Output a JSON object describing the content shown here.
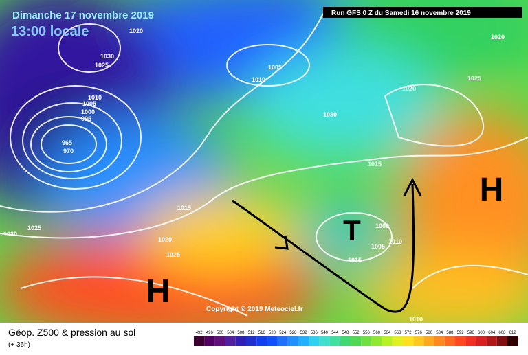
{
  "header": {
    "date": "Dimanche 17 novembre 2019",
    "time": "13:00 locale",
    "run": "Run GFS 0 Z du Samedi 16 novembre 2019"
  },
  "copyright": "Copyright © 2019 Meteociel.fr",
  "footer": {
    "title": "Géop. Z500 & pression au sol",
    "lead": "(+ 36h)"
  },
  "centers": [
    "H",
    "H",
    "T"
  ],
  "isobars": [
    "1020",
    "1030",
    "1025",
    "1010",
    "1005",
    "1000",
    "995",
    "965",
    "970",
    "1015",
    "1025",
    "1030",
    "1005",
    "1010",
    "1020",
    "1025",
    "1030",
    "1020",
    "1015",
    "1000",
    "1005",
    "1010",
    "1015",
    "1020",
    "1025",
    "1010"
  ],
  "colorbar": [
    492,
    496,
    500,
    504,
    508,
    512,
    516,
    520,
    524,
    528,
    532,
    536,
    540,
    544,
    548,
    552,
    556,
    560,
    564,
    568,
    572,
    576,
    580,
    584,
    588,
    592,
    596,
    600,
    604,
    608,
    612
  ]
}
